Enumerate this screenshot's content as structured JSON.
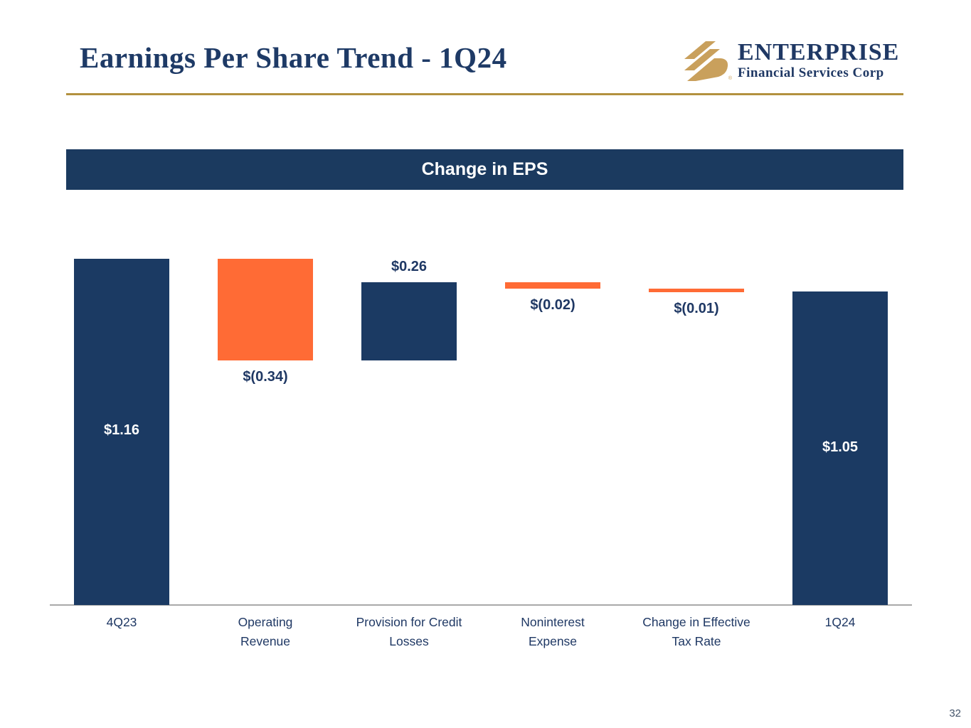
{
  "slide": {
    "title": "Earnings Per Share Trend - 1Q24",
    "page_number": "32"
  },
  "logo": {
    "name": "ENTERPRISE",
    "subtitle": "Financial Services Corp",
    "icon": "gold-diagonal-stripes-icon"
  },
  "banner": {
    "title": "Change in EPS"
  },
  "colors": {
    "navy": "#1B3A63",
    "orange": "#FF6B35",
    "gold_line": "#B3913F",
    "logo_gold": "#C9A05C",
    "axis_gray": "#A9A9A9",
    "label_navy": "#1F3864",
    "label_white": "#FFFFFF"
  },
  "chart_data": {
    "type": "bar",
    "subtype": "waterfall",
    "title": "Change in EPS",
    "xlabel": "",
    "ylabel": "",
    "ylim": [
      0,
      1.31
    ],
    "grid": false,
    "legend": false,
    "categories": [
      "4Q23",
      "Operating\nRevenue",
      "Provision for Credit\nLosses",
      "Noninterest\nExpense",
      "Change in Effective\nTax Rate",
      "1Q24"
    ],
    "bars": [
      {
        "category": "4Q23",
        "start": 0,
        "end": 1.16,
        "value": 1.16,
        "label": "$1.16",
        "color": "navy",
        "label_position": "inside"
      },
      {
        "category": "Operating Revenue",
        "start": 0.82,
        "end": 1.16,
        "value": -0.34,
        "label": "$(0.34)",
        "color": "orange",
        "label_position": "below"
      },
      {
        "category": "Provision for Credit Losses",
        "start": 0.82,
        "end": 1.08,
        "value": 0.26,
        "label": "$0.26",
        "color": "navy",
        "label_position": "above"
      },
      {
        "category": "Noninterest Expense",
        "start": 1.06,
        "end": 1.08,
        "value": -0.02,
        "label": "$(0.02)",
        "color": "orange",
        "label_position": "below"
      },
      {
        "category": "Change in Effective Tax Rate",
        "start": 1.05,
        "end": 1.06,
        "value": -0.01,
        "label": "$(0.01)",
        "color": "orange",
        "label_position": "below"
      },
      {
        "category": "1Q24",
        "start": 0,
        "end": 1.05,
        "value": 1.05,
        "label": "$1.05",
        "color": "navy",
        "label_position": "inside"
      }
    ]
  }
}
